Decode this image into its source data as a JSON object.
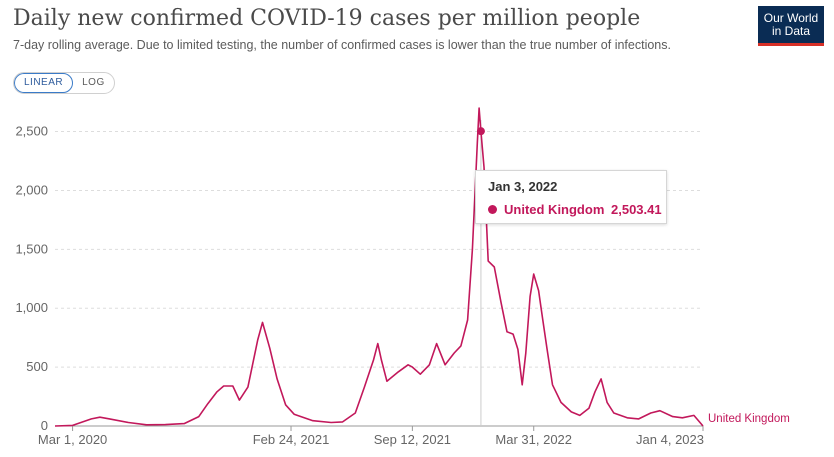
{
  "header": {
    "title": "Daily new confirmed COVID-19 cases per million people",
    "subtitle": "7-day rolling average. Due to limited testing, the number of confirmed cases is lower than the true number of infections.",
    "logo_line1": "Our World",
    "logo_line2": "in Data"
  },
  "scale_toggle": {
    "linear_label": "LINEAR",
    "log_label": "LOG",
    "selected": "LINEAR"
  },
  "tooltip": {
    "date": "Jan 3, 2022",
    "series": "United Kingdom",
    "value": "2,503.41"
  },
  "colors": {
    "series": "#c2185b",
    "grid": "#dddddd",
    "logo_bg": "#0a2c54",
    "accent": "#3a7bc8"
  },
  "chart_data": {
    "type": "line",
    "title": "Daily new confirmed COVID-19 cases per million people",
    "subtitle": "7-day rolling average. Due to limited testing, the number of confirmed cases is lower than the true number of infections.",
    "ylim": [
      0,
      2700
    ],
    "y_ticks": [
      0,
      500,
      1000,
      1500,
      2000,
      2500
    ],
    "y_tick_labels": [
      "0",
      "500",
      "1,000",
      "1,500",
      "2,000",
      "2,500"
    ],
    "x_range": [
      "2020-02-01",
      "2023-01-04"
    ],
    "x_ticks": [
      "2020-03-01",
      "2021-02-24",
      "2021-09-12",
      "2022-03-31",
      "2023-01-04"
    ],
    "x_tick_labels": [
      "Mar 1, 2020",
      "Feb 24, 2021",
      "Sep 12, 2021",
      "Mar 31, 2022",
      "Jan 4, 2023"
    ],
    "grid": "horizontal dashed",
    "series": [
      {
        "name": "United Kingdom",
        "points": [
          [
            "2020-02-01",
            0
          ],
          [
            "2020-03-01",
            5
          ],
          [
            "2020-04-01",
            60
          ],
          [
            "2020-04-15",
            75
          ],
          [
            "2020-05-01",
            60
          ],
          [
            "2020-06-01",
            30
          ],
          [
            "2020-07-01",
            10
          ],
          [
            "2020-08-01",
            12
          ],
          [
            "2020-09-01",
            20
          ],
          [
            "2020-09-25",
            80
          ],
          [
            "2020-10-10",
            190
          ],
          [
            "2020-10-25",
            290
          ],
          [
            "2020-11-05",
            340
          ],
          [
            "2020-11-20",
            340
          ],
          [
            "2020-12-01",
            220
          ],
          [
            "2020-12-15",
            330
          ],
          [
            "2020-12-31",
            730
          ],
          [
            "2021-01-08",
            880
          ],
          [
            "2021-01-20",
            660
          ],
          [
            "2021-02-01",
            400
          ],
          [
            "2021-02-15",
            180
          ],
          [
            "2021-03-01",
            100
          ],
          [
            "2021-04-01",
            45
          ],
          [
            "2021-05-01",
            30
          ],
          [
            "2021-05-20",
            35
          ],
          [
            "2021-06-10",
            110
          ],
          [
            "2021-06-25",
            330
          ],
          [
            "2021-07-10",
            560
          ],
          [
            "2021-07-17",
            700
          ],
          [
            "2021-07-23",
            560
          ],
          [
            "2021-08-01",
            380
          ],
          [
            "2021-08-20",
            460
          ],
          [
            "2021-09-05",
            520
          ],
          [
            "2021-09-12",
            500
          ],
          [
            "2021-09-25",
            440
          ],
          [
            "2021-10-10",
            520
          ],
          [
            "2021-10-22",
            700
          ],
          [
            "2021-11-05",
            520
          ],
          [
            "2021-11-20",
            620
          ],
          [
            "2021-12-01",
            680
          ],
          [
            "2021-12-12",
            900
          ],
          [
            "2021-12-20",
            1500
          ],
          [
            "2021-12-28",
            2400
          ],
          [
            "2021-12-31",
            2700
          ],
          [
            "2022-01-03",
            2503.41
          ],
          [
            "2022-01-08",
            2200
          ],
          [
            "2022-01-15",
            1400
          ],
          [
            "2022-01-25",
            1350
          ],
          [
            "2022-02-05",
            1050
          ],
          [
            "2022-02-15",
            800
          ],
          [
            "2022-02-25",
            780
          ],
          [
            "2022-03-05",
            650
          ],
          [
            "2022-03-12",
            350
          ],
          [
            "2022-03-18",
            620
          ],
          [
            "2022-03-25",
            1100
          ],
          [
            "2022-03-31",
            1290
          ],
          [
            "2022-04-08",
            1150
          ],
          [
            "2022-04-15",
            900
          ],
          [
            "2022-04-22",
            650
          ],
          [
            "2022-05-01",
            350
          ],
          [
            "2022-05-15",
            200
          ],
          [
            "2022-06-01",
            120
          ],
          [
            "2022-06-15",
            90
          ],
          [
            "2022-06-30",
            150
          ],
          [
            "2022-07-10",
            290
          ],
          [
            "2022-07-20",
            400
          ],
          [
            "2022-07-30",
            200
          ],
          [
            "2022-08-10",
            110
          ],
          [
            "2022-09-01",
            70
          ],
          [
            "2022-09-20",
            60
          ],
          [
            "2022-10-10",
            110
          ],
          [
            "2022-10-25",
            130
          ],
          [
            "2022-11-15",
            80
          ],
          [
            "2022-12-01",
            70
          ],
          [
            "2022-12-20",
            90
          ],
          [
            "2023-01-04",
            0
          ]
        ]
      }
    ],
    "highlight": {
      "x": "2022-01-03",
      "y": 2503.41,
      "series": "United Kingdom"
    }
  }
}
